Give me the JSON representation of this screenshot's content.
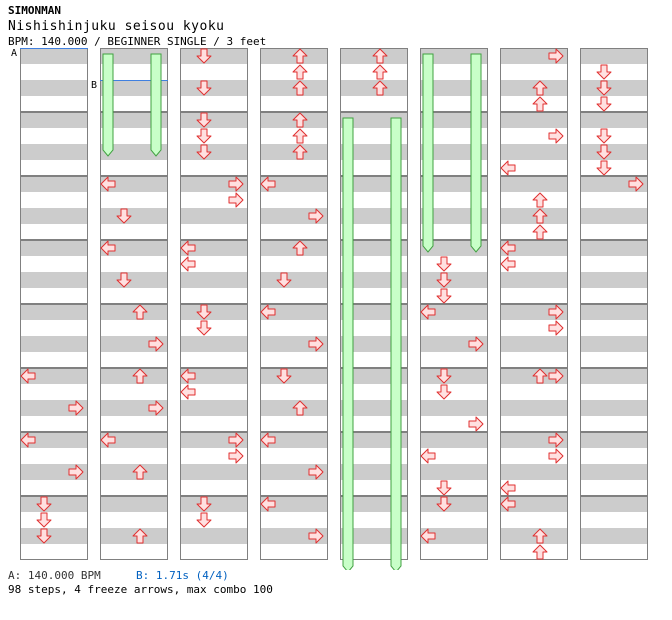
{
  "header": {
    "artist": "SIMONMAN",
    "title": "Nishishinjuku seisou kyoku",
    "info": "BPM: 140.000 / BEGINNER SINGLE / 3 feet"
  },
  "markers": {
    "a_label": "A",
    "b_label": "B"
  },
  "footer": {
    "a_text": "A: 140.000 BPM",
    "b_text": "B: 1.71s (4/4)",
    "summary": "98 steps, 4 freeze arrows, max combo 100"
  },
  "colors": {
    "stripe": "#cccccc",
    "arrow_fill": "#ffe0e0",
    "arrow_stroke": "#e03030",
    "freeze_fill": "#c8ffc8",
    "freeze_stroke": "#40a040",
    "marker_line": "#4080e0"
  },
  "chart_data": {
    "type": "step-chart",
    "lanes": [
      "left",
      "down",
      "up",
      "right"
    ],
    "columns": 8,
    "measures_per_column": 8,
    "rows_per_measure": 4,
    "arrows": [
      {
        "c": 0,
        "m": 5,
        "r": 0,
        "l": 0
      },
      {
        "c": 0,
        "m": 5,
        "r": 2,
        "l": 3
      },
      {
        "c": 0,
        "m": 6,
        "r": 0,
        "l": 0
      },
      {
        "c": 0,
        "m": 6,
        "r": 2,
        "l": 3
      },
      {
        "c": 0,
        "m": 7,
        "r": 0,
        "l": 1
      },
      {
        "c": 0,
        "m": 7,
        "r": 1,
        "l": 1
      },
      {
        "c": 0,
        "m": 7,
        "r": 2,
        "l": 1
      },
      {
        "c": 1,
        "m": 2,
        "r": 0,
        "l": 0
      },
      {
        "c": 1,
        "m": 2,
        "r": 2,
        "l": 1
      },
      {
        "c": 1,
        "m": 3,
        "r": 0,
        "l": 0
      },
      {
        "c": 1,
        "m": 3,
        "r": 2,
        "l": 1
      },
      {
        "c": 1,
        "m": 4,
        "r": 0,
        "l": 2
      },
      {
        "c": 1,
        "m": 4,
        "r": 2,
        "l": 3
      },
      {
        "c": 1,
        "m": 5,
        "r": 0,
        "l": 2
      },
      {
        "c": 1,
        "m": 5,
        "r": 2,
        "l": 3
      },
      {
        "c": 1,
        "m": 6,
        "r": 0,
        "l": 0
      },
      {
        "c": 1,
        "m": 6,
        "r": 2,
        "l": 2
      },
      {
        "c": 1,
        "m": 7,
        "r": 2,
        "l": 2
      },
      {
        "c": 2,
        "m": 0,
        "r": 0,
        "l": 1
      },
      {
        "c": 2,
        "m": 0,
        "r": 2,
        "l": 1
      },
      {
        "c": 2,
        "m": 1,
        "r": 0,
        "l": 1
      },
      {
        "c": 2,
        "m": 1,
        "r": 1,
        "l": 1
      },
      {
        "c": 2,
        "m": 1,
        "r": 2,
        "l": 1
      },
      {
        "c": 2,
        "m": 2,
        "r": 0,
        "l": 3
      },
      {
        "c": 2,
        "m": 2,
        "r": 1,
        "l": 3
      },
      {
        "c": 2,
        "m": 3,
        "r": 0,
        "l": 0
      },
      {
        "c": 2,
        "m": 3,
        "r": 1,
        "l": 0
      },
      {
        "c": 2,
        "m": 4,
        "r": 0,
        "l": 1
      },
      {
        "c": 2,
        "m": 4,
        "r": 1,
        "l": 1
      },
      {
        "c": 2,
        "m": 5,
        "r": 0,
        "l": 0
      },
      {
        "c": 2,
        "m": 5,
        "r": 1,
        "l": 0
      },
      {
        "c": 2,
        "m": 6,
        "r": 0,
        "l": 3
      },
      {
        "c": 2,
        "m": 6,
        "r": 1,
        "l": 3
      },
      {
        "c": 2,
        "m": 7,
        "r": 0,
        "l": 1
      },
      {
        "c": 2,
        "m": 7,
        "r": 1,
        "l": 1
      },
      {
        "c": 3,
        "m": 0,
        "r": 0,
        "l": 2
      },
      {
        "c": 3,
        "m": 0,
        "r": 1,
        "l": 2
      },
      {
        "c": 3,
        "m": 0,
        "r": 2,
        "l": 2
      },
      {
        "c": 3,
        "m": 1,
        "r": 0,
        "l": 2
      },
      {
        "c": 3,
        "m": 1,
        "r": 1,
        "l": 2
      },
      {
        "c": 3,
        "m": 1,
        "r": 2,
        "l": 2
      },
      {
        "c": 3,
        "m": 2,
        "r": 0,
        "l": 0
      },
      {
        "c": 3,
        "m": 2,
        "r": 2,
        "l": 3
      },
      {
        "c": 3,
        "m": 3,
        "r": 0,
        "l": 2
      },
      {
        "c": 3,
        "m": 3,
        "r": 2,
        "l": 1
      },
      {
        "c": 3,
        "m": 4,
        "r": 0,
        "l": 0
      },
      {
        "c": 3,
        "m": 4,
        "r": 2,
        "l": 3
      },
      {
        "c": 3,
        "m": 5,
        "r": 0,
        "l": 1
      },
      {
        "c": 3,
        "m": 5,
        "r": 2,
        "l": 2
      },
      {
        "c": 3,
        "m": 6,
        "r": 0,
        "l": 0
      },
      {
        "c": 3,
        "m": 6,
        "r": 2,
        "l": 3
      },
      {
        "c": 3,
        "m": 7,
        "r": 0,
        "l": 0
      },
      {
        "c": 3,
        "m": 7,
        "r": 2,
        "l": 3
      },
      {
        "c": 4,
        "m": 0,
        "r": 0,
        "l": 2
      },
      {
        "c": 4,
        "m": 0,
        "r": 1,
        "l": 2
      },
      {
        "c": 4,
        "m": 0,
        "r": 2,
        "l": 2
      },
      {
        "c": 5,
        "m": 3,
        "r": 1,
        "l": 1
      },
      {
        "c": 5,
        "m": 3,
        "r": 2,
        "l": 1
      },
      {
        "c": 5,
        "m": 3,
        "r": 3,
        "l": 1
      },
      {
        "c": 5,
        "m": 4,
        "r": 0,
        "l": 0
      },
      {
        "c": 5,
        "m": 4,
        "r": 2,
        "l": 3
      },
      {
        "c": 5,
        "m": 5,
        "r": 0,
        "l": 1
      },
      {
        "c": 5,
        "m": 5,
        "r": 1,
        "l": 1
      },
      {
        "c": 5,
        "m": 5,
        "r": 3,
        "l": 3
      },
      {
        "c": 5,
        "m": 6,
        "r": 1,
        "l": 0
      },
      {
        "c": 5,
        "m": 6,
        "r": 3,
        "l": 1
      },
      {
        "c": 5,
        "m": 7,
        "r": 0,
        "l": 1
      },
      {
        "c": 5,
        "m": 7,
        "r": 2,
        "l": 0
      },
      {
        "c": 6,
        "m": 0,
        "r": 0,
        "l": 3
      },
      {
        "c": 6,
        "m": 0,
        "r": 2,
        "l": 2
      },
      {
        "c": 6,
        "m": 0,
        "r": 3,
        "l": 2
      },
      {
        "c": 6,
        "m": 1,
        "r": 1,
        "l": 3
      },
      {
        "c": 6,
        "m": 1,
        "r": 3,
        "l": 0
      },
      {
        "c": 6,
        "m": 2,
        "r": 1,
        "l": 2
      },
      {
        "c": 6,
        "m": 2,
        "r": 2,
        "l": 2
      },
      {
        "c": 6,
        "m": 2,
        "r": 3,
        "l": 2
      },
      {
        "c": 6,
        "m": 3,
        "r": 0,
        "l": 0
      },
      {
        "c": 6,
        "m": 3,
        "r": 1,
        "l": 0
      },
      {
        "c": 6,
        "m": 4,
        "r": 0,
        "l": 3
      },
      {
        "c": 6,
        "m": 4,
        "r": 1,
        "l": 3
      },
      {
        "c": 6,
        "m": 5,
        "r": 0,
        "l": 2
      },
      {
        "c": 6,
        "m": 5,
        "r": 0,
        "l": 3
      },
      {
        "c": 6,
        "m": 6,
        "r": 0,
        "l": 3
      },
      {
        "c": 6,
        "m": 6,
        "r": 1,
        "l": 3
      },
      {
        "c": 6,
        "m": 6,
        "r": 3,
        "l": 0
      },
      {
        "c": 6,
        "m": 7,
        "r": 0,
        "l": 0
      },
      {
        "c": 6,
        "m": 7,
        "r": 2,
        "l": 2
      },
      {
        "c": 6,
        "m": 7,
        "r": 3,
        "l": 2
      },
      {
        "c": 7,
        "m": 0,
        "r": 1,
        "l": 1
      },
      {
        "c": 7,
        "m": 0,
        "r": 2,
        "l": 1
      },
      {
        "c": 7,
        "m": 0,
        "r": 3,
        "l": 1
      },
      {
        "c": 7,
        "m": 1,
        "r": 1,
        "l": 1
      },
      {
        "c": 7,
        "m": 1,
        "r": 2,
        "l": 1
      },
      {
        "c": 7,
        "m": 1,
        "r": 3,
        "l": 1
      },
      {
        "c": 7,
        "m": 2,
        "r": 0,
        "l": 3
      }
    ],
    "freezes": [
      {
        "c": 1,
        "lane": 0,
        "start": [
          0,
          0
        ],
        "end": [
          1,
          2
        ]
      },
      {
        "c": 1,
        "lane": 3,
        "start": [
          0,
          0
        ],
        "end": [
          1,
          2
        ]
      },
      {
        "c": 4,
        "lane": 0,
        "start": [
          1,
          0
        ],
        "end": [
          8,
          0
        ]
      },
      {
        "c": 4,
        "lane": 3,
        "start": [
          1,
          0
        ],
        "end": [
          8,
          0
        ]
      },
      {
        "c": 5,
        "lane": 0,
        "start": [
          0,
          0
        ],
        "end": [
          3,
          0
        ]
      },
      {
        "c": 5,
        "lane": 3,
        "start": [
          0,
          0
        ],
        "end": [
          3,
          0
        ]
      }
    ]
  }
}
